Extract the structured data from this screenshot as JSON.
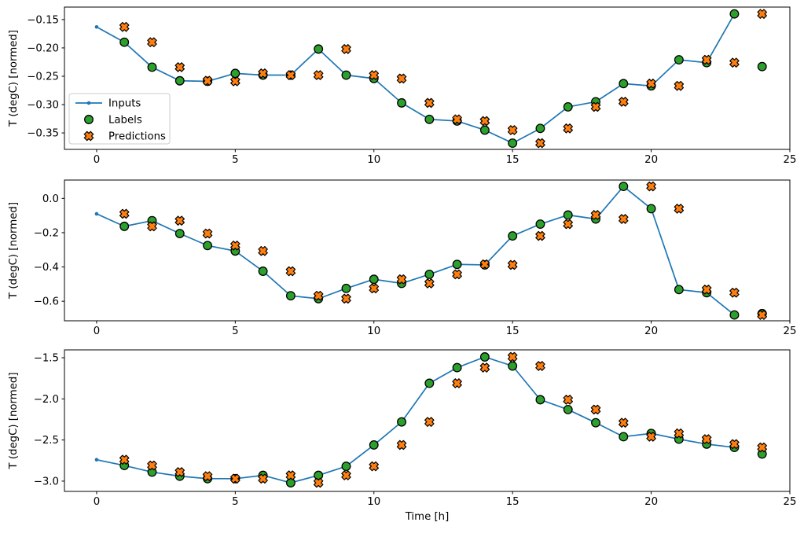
{
  "figure": {
    "background": "#ffffff",
    "xlabel": "Time [h]",
    "ylabel": "T (degC) [normed]",
    "colors": {
      "inputs": "#1f77b4",
      "labels": "#2ca02c",
      "predictions": "#ff7f0e",
      "marker_edge": "#000000",
      "spine": "#000000",
      "text": "#000000"
    },
    "legend": {
      "border_color": "#cccccc",
      "background": "#ffffff",
      "items": [
        {
          "label": "Inputs",
          "marker": "line-dot",
          "color": "#1f77b4"
        },
        {
          "label": "Labels",
          "marker": "circle",
          "color": "#2ca02c"
        },
        {
          "label": "Predictions",
          "marker": "x",
          "color": "#ff7f0e"
        }
      ]
    }
  },
  "chart_data": [
    {
      "type": "line",
      "ylabel": "T (degC) [normed]",
      "xlabel": "",
      "legend": true,
      "xlim": [
        -1.16,
        25.0
      ],
      "ylim": [
        -0.379,
        -0.128
      ],
      "xticks": [
        0,
        5,
        10,
        15,
        20,
        25
      ],
      "xtick_labels": [
        "0",
        "5",
        "10",
        "15",
        "20",
        "25"
      ],
      "yticks": [
        -0.15,
        -0.2,
        -0.25,
        -0.3,
        -0.35
      ],
      "ytick_labels": [
        "−0.15",
        "−0.20",
        "−0.25",
        "−0.30",
        "−0.35"
      ],
      "series": [
        {
          "name": "Inputs",
          "kind": "line",
          "color": "#1f77b4",
          "x": [
            0,
            1,
            2,
            3,
            4,
            5,
            6,
            7,
            8,
            9,
            10,
            11,
            12,
            13,
            14,
            15,
            16,
            17,
            18,
            19,
            20,
            21,
            22,
            23
          ],
          "y": [
            -0.163,
            -0.19,
            -0.234,
            -0.258,
            -0.259,
            -0.245,
            -0.248,
            -0.248,
            -0.202,
            -0.248,
            -0.254,
            -0.297,
            -0.326,
            -0.329,
            -0.345,
            -0.368,
            -0.342,
            -0.304,
            -0.295,
            -0.263,
            -0.267,
            -0.221,
            -0.226,
            -0.14
          ]
        },
        {
          "name": "Labels",
          "kind": "circle",
          "color": "#2ca02c",
          "edge": "#000000",
          "x": [
            1,
            2,
            3,
            4,
            5,
            6,
            7,
            8,
            9,
            10,
            11,
            12,
            13,
            14,
            15,
            16,
            17,
            18,
            19,
            20,
            21,
            22,
            23,
            24
          ],
          "y": [
            -0.19,
            -0.234,
            -0.258,
            -0.259,
            -0.245,
            -0.248,
            -0.248,
            -0.202,
            -0.248,
            -0.254,
            -0.297,
            -0.326,
            -0.329,
            -0.345,
            -0.368,
            -0.342,
            -0.304,
            -0.295,
            -0.263,
            -0.267,
            -0.221,
            -0.226,
            -0.14,
            -0.233
          ]
        },
        {
          "name": "Predictions",
          "kind": "x",
          "color": "#ff7f0e",
          "edge": "#000000",
          "x": [
            1,
            2,
            3,
            4,
            5,
            6,
            7,
            8,
            9,
            10,
            11,
            12,
            13,
            14,
            15,
            16,
            17,
            18,
            19,
            20,
            21,
            22,
            23,
            24
          ],
          "y": [
            -0.163,
            -0.19,
            -0.234,
            -0.258,
            -0.259,
            -0.245,
            -0.248,
            -0.248,
            -0.202,
            -0.248,
            -0.254,
            -0.297,
            -0.326,
            -0.329,
            -0.345,
            -0.368,
            -0.342,
            -0.304,
            -0.295,
            -0.263,
            -0.267,
            -0.221,
            -0.226,
            -0.14
          ]
        }
      ]
    },
    {
      "type": "line",
      "ylabel": "T (degC) [normed]",
      "xlabel": "",
      "legend": false,
      "xlim": [
        -1.16,
        25.0
      ],
      "ylim": [
        -0.714,
        0.107
      ],
      "xticks": [
        0,
        5,
        10,
        15,
        20,
        25
      ],
      "xtick_labels": [
        "0",
        "5",
        "10",
        "15",
        "20",
        "25"
      ],
      "yticks": [
        0.0,
        -0.2,
        -0.4,
        -0.6
      ],
      "ytick_labels": [
        "0.0",
        "−0.2",
        "−0.4",
        "−0.6"
      ],
      "series": [
        {
          "name": "Inputs",
          "kind": "line",
          "color": "#1f77b4",
          "x": [
            0,
            1,
            2,
            3,
            4,
            5,
            6,
            7,
            8,
            9,
            10,
            11,
            12,
            13,
            14,
            15,
            16,
            17,
            18,
            19,
            20,
            21,
            22,
            23
          ],
          "y": [
            -0.09,
            -0.163,
            -0.13,
            -0.205,
            -0.275,
            -0.307,
            -0.425,
            -0.568,
            -0.585,
            -0.525,
            -0.472,
            -0.496,
            -0.443,
            -0.385,
            -0.388,
            -0.219,
            -0.15,
            -0.097,
            -0.12,
            0.07,
            -0.06,
            -0.532,
            -0.55,
            -0.68
          ]
        },
        {
          "name": "Labels",
          "kind": "circle",
          "color": "#2ca02c",
          "edge": "#000000",
          "x": [
            1,
            2,
            3,
            4,
            5,
            6,
            7,
            8,
            9,
            10,
            11,
            12,
            13,
            14,
            15,
            16,
            17,
            18,
            19,
            20,
            21,
            22,
            23,
            24
          ],
          "y": [
            -0.163,
            -0.13,
            -0.205,
            -0.275,
            -0.307,
            -0.425,
            -0.568,
            -0.585,
            -0.525,
            -0.472,
            -0.496,
            -0.443,
            -0.385,
            -0.388,
            -0.219,
            -0.15,
            -0.097,
            -0.12,
            0.07,
            -0.06,
            -0.532,
            -0.55,
            -0.68,
            -0.672
          ]
        },
        {
          "name": "Predictions",
          "kind": "x",
          "color": "#ff7f0e",
          "edge": "#000000",
          "x": [
            1,
            2,
            3,
            4,
            5,
            6,
            7,
            8,
            9,
            10,
            11,
            12,
            13,
            14,
            15,
            16,
            17,
            18,
            19,
            20,
            21,
            22,
            23,
            24
          ],
          "y": [
            -0.09,
            -0.163,
            -0.13,
            -0.205,
            -0.275,
            -0.307,
            -0.425,
            -0.568,
            -0.585,
            -0.525,
            -0.472,
            -0.496,
            -0.443,
            -0.385,
            -0.388,
            -0.219,
            -0.15,
            -0.097,
            -0.12,
            0.07,
            -0.06,
            -0.532,
            -0.55,
            -0.68
          ]
        }
      ]
    },
    {
      "type": "line",
      "ylabel": "T (degC) [normed]",
      "xlabel": "Time [h]",
      "legend": false,
      "xlim": [
        -1.16,
        25.0
      ],
      "ylim": [
        -3.125,
        -1.404
      ],
      "xticks": [
        0,
        5,
        10,
        15,
        20,
        25
      ],
      "xtick_labels": [
        "0",
        "5",
        "10",
        "15",
        "20",
        "25"
      ],
      "yticks": [
        -1.5,
        -2.0,
        -2.5,
        -3.0
      ],
      "ytick_labels": [
        "−1.5",
        "−2.0",
        "−2.5",
        "−3.0"
      ],
      "series": [
        {
          "name": "Inputs",
          "kind": "line",
          "color": "#1f77b4",
          "x": [
            0,
            1,
            2,
            3,
            4,
            5,
            6,
            7,
            8,
            9,
            10,
            11,
            12,
            13,
            14,
            15,
            16,
            17,
            18,
            19,
            20,
            21,
            22,
            23
          ],
          "y": [
            -2.74,
            -2.81,
            -2.89,
            -2.94,
            -2.97,
            -2.97,
            -2.93,
            -3.02,
            -2.93,
            -2.82,
            -2.56,
            -2.28,
            -1.81,
            -1.62,
            -1.49,
            -1.6,
            -2.01,
            -2.13,
            -2.29,
            -2.46,
            -2.42,
            -2.49,
            -2.55,
            -2.59
          ]
        },
        {
          "name": "Labels",
          "kind": "circle",
          "color": "#2ca02c",
          "edge": "#000000",
          "x": [
            1,
            2,
            3,
            4,
            5,
            6,
            7,
            8,
            9,
            10,
            11,
            12,
            13,
            14,
            15,
            16,
            17,
            18,
            19,
            20,
            21,
            22,
            23,
            24
          ],
          "y": [
            -2.81,
            -2.89,
            -2.94,
            -2.97,
            -2.97,
            -2.93,
            -3.02,
            -2.93,
            -2.82,
            -2.56,
            -2.28,
            -1.81,
            -1.62,
            -1.49,
            -1.6,
            -2.01,
            -2.13,
            -2.29,
            -2.46,
            -2.42,
            -2.49,
            -2.55,
            -2.59,
            -2.67
          ]
        },
        {
          "name": "Predictions",
          "kind": "x",
          "color": "#ff7f0e",
          "edge": "#000000",
          "x": [
            1,
            2,
            3,
            4,
            5,
            6,
            7,
            8,
            9,
            10,
            11,
            12,
            13,
            14,
            15,
            16,
            17,
            18,
            19,
            20,
            21,
            22,
            23,
            24
          ],
          "y": [
            -2.74,
            -2.81,
            -2.89,
            -2.94,
            -2.97,
            -2.97,
            -2.93,
            -3.02,
            -2.93,
            -2.82,
            -2.56,
            -2.28,
            -1.81,
            -1.62,
            -1.49,
            -1.6,
            -2.01,
            -2.13,
            -2.29,
            -2.46,
            -2.42,
            -2.49,
            -2.55,
            -2.59
          ]
        }
      ]
    }
  ]
}
